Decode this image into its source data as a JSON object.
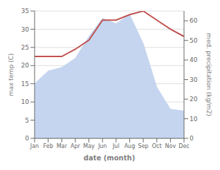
{
  "chart_data": {
    "type": "line",
    "xlabel": "date (month)",
    "ylabel": "max temp (C)",
    "y2label": "med. precipitation (kg/m2)",
    "categories": [
      "Jan",
      "Feb",
      "Mar",
      "Apr",
      "May",
      "Jun",
      "Jul",
      "Aug",
      "Sep",
      "Oct",
      "Nov",
      "Dec"
    ],
    "series": [
      {
        "type": "area",
        "color": "#c5d5f0",
        "values": [
          15.0,
          18.5,
          19.5,
          22.0,
          28.0,
          33.0,
          31.5,
          34.0,
          26.0,
          14.0,
          8.0,
          7.5
        ]
      },
      {
        "type": "line",
        "color": "#c0504d",
        "values": [
          22.5,
          22.5,
          22.5,
          24.5,
          27.0,
          32.5,
          32.5,
          34.0,
          35.0,
          32.5,
          30.0,
          28.0
        ]
      }
    ],
    "ylim": [
      0,
      35
    ],
    "yticks": [
      0,
      5,
      10,
      15,
      20,
      25,
      30,
      35
    ],
    "y2lim": [
      0,
      65
    ],
    "y2ticks": [
      0,
      10,
      20,
      30,
      40,
      50,
      60
    ],
    "grid": true
  }
}
